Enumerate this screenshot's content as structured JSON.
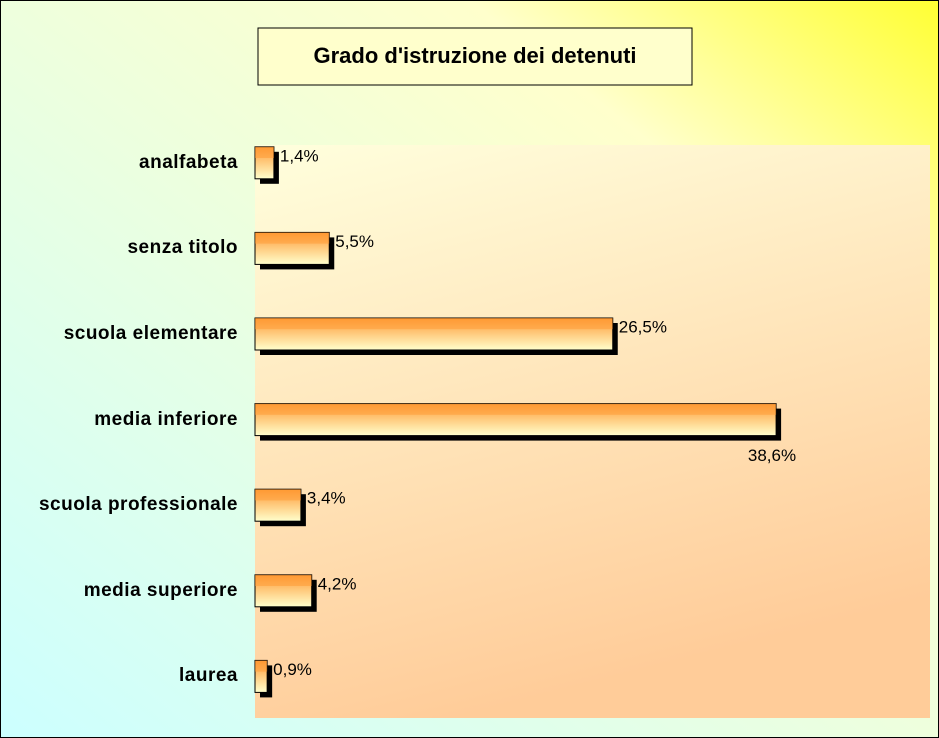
{
  "chart_data": {
    "type": "hbar",
    "title": "Grado d'istruzione dei detenuti",
    "categories": [
      "analfabeta",
      "senza titolo",
      "scuola elementare",
      "media inferiore",
      "scuola professionale",
      "media superiore",
      "laurea"
    ],
    "values": [
      1.4,
      5.5,
      26.5,
      38.6,
      3.4,
      4.2,
      0.9
    ],
    "value_labels": [
      "1,4%",
      "5,5%",
      "26,5%",
      "38,6%",
      "3,4%",
      "4,2%",
      "0,9%"
    ],
    "color": "#ff9933",
    "xlim": [
      0,
      50
    ]
  }
}
